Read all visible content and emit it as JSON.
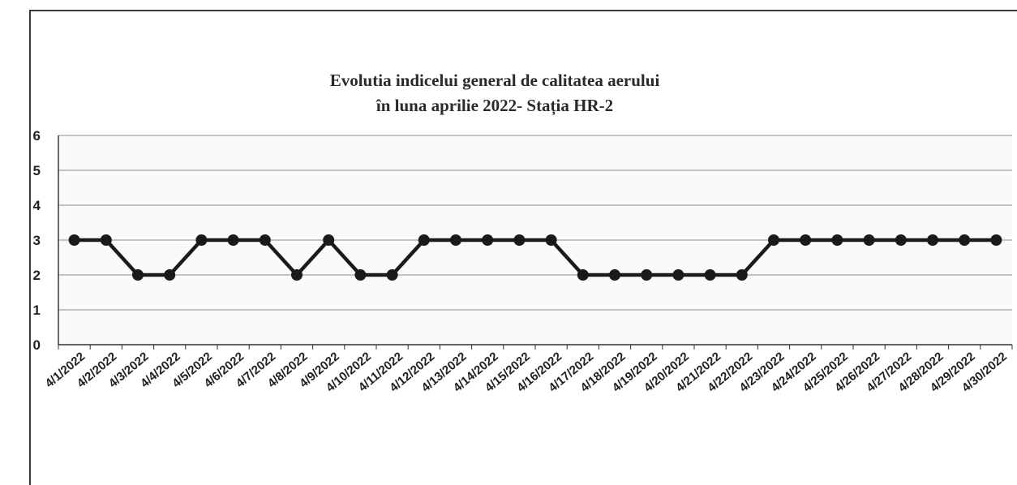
{
  "chart_data": {
    "type": "line",
    "title_lines": [
      "Evolutia indicelui  general de calitatea aerului",
      "în luna aprilie  2022- Stația HR-2"
    ],
    "categories": [
      "4/1/2022",
      "4/2/2022",
      "4/3/2022",
      "4/4/2022",
      "4/5/2022",
      "4/6/2022",
      "4/7/2022",
      "4/8/2022",
      "4/9/2022",
      "4/10/2022",
      "4/11/2022",
      "4/12/2022",
      "4/13/2022",
      "4/14/2022",
      "4/15/2022",
      "4/16/2022",
      "4/17/2022",
      "4/18/2022",
      "4/19/2022",
      "4/20/2022",
      "4/21/2022",
      "4/22/2022",
      "4/23/2022",
      "4/24/2022",
      "4/25/2022",
      "4/26/2022",
      "4/27/2022",
      "4/28/2022",
      "4/29/2022",
      "4/30/2022"
    ],
    "values": [
      3,
      3,
      2,
      2,
      3,
      3,
      3,
      2,
      3,
      2,
      2,
      3,
      3,
      3,
      3,
      3,
      2,
      2,
      2,
      2,
      2,
      2,
      3,
      3,
      3,
      3,
      3,
      3,
      3,
      3
    ],
    "ylim": [
      0,
      6
    ],
    "yticks": [
      "0",
      "1",
      "2",
      "3",
      "4",
      "5",
      "6"
    ],
    "grid": true,
    "legend": false,
    "colors": {
      "line": "#1a1a1a",
      "marker": "#1a1a1a",
      "grid": "#8c8c8c",
      "plot_bg": "#fafafa"
    }
  }
}
